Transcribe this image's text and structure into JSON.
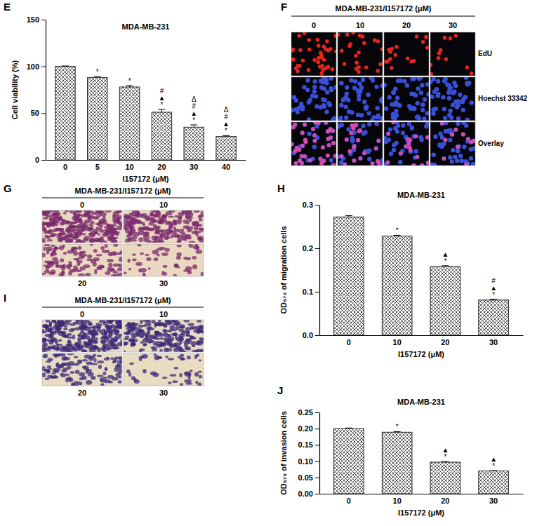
{
  "chart_data": [
    {
      "type": "bar",
      "panel_label": "E",
      "title": "MDA-MB-231",
      "x_label": "I157172 (μM)",
      "y_label": "Cell viability (%)",
      "categories": [
        "0",
        "5",
        "10",
        "20",
        "30",
        "40"
      ],
      "values": [
        100,
        88,
        78,
        51,
        35,
        25
      ],
      "errors": [
        0.5,
        1,
        1.5,
        3,
        2.5,
        1
      ],
      "annotations": [
        [],
        [
          "*"
        ],
        [
          "*"
        ],
        [
          "#",
          "▲",
          "*"
        ],
        [
          "Δ",
          "#",
          "▲",
          "*"
        ],
        [
          "Δ",
          "#",
          "▲",
          "*"
        ]
      ],
      "ylim": [
        0,
        150
      ],
      "yticks": [
        0,
        50,
        100,
        150
      ],
      "color": "#222222"
    },
    {
      "type": "image_grid",
      "panel_label": "F",
      "title": "MDA-MB-231/I157172  (μM)",
      "columns": [
        "0",
        "10",
        "20",
        "30"
      ],
      "rows": [
        "EdU",
        "Hoechst 33342",
        "Overlay"
      ]
    },
    {
      "type": "image_grid",
      "panel_label": "G",
      "title": "MDA-MB-231/I157172  (μM)",
      "labels": [
        "0",
        "10",
        "20",
        "30"
      ]
    },
    {
      "type": "bar",
      "panel_label": "H",
      "title": "MDA-MB-231",
      "x_label": "I157172  (μM)",
      "y_label": "OD₅₇₀ of  migration cells",
      "categories": [
        "0",
        "10",
        "20",
        "30"
      ],
      "values": [
        0.272,
        0.228,
        0.158,
        0.081
      ],
      "errors": [
        0.003,
        0.002,
        0.002,
        0.002
      ],
      "annotations": [
        [],
        [
          "*"
        ],
        [
          "▲",
          "*"
        ],
        [
          "#",
          "▲",
          "*"
        ]
      ],
      "ylim": [
        0,
        0.3
      ],
      "yticks": [
        {
          "value": 0,
          "label": "0.0"
        },
        0.1,
        0.2,
        0.3
      ],
      "color": "#222222"
    },
    {
      "type": "image_grid",
      "panel_label": "I",
      "title": "MDA-MB-231/I157172  (μM)",
      "labels": [
        "0",
        "10",
        "20",
        "30"
      ]
    },
    {
      "type": "bar",
      "panel_label": "J",
      "title": "MDA-MB-231",
      "x_label": "I157172  (μM)",
      "y_label": "OD₅₇₀ of  invasion cells",
      "categories": [
        "0",
        "10",
        "20",
        "30"
      ],
      "values": [
        0.2,
        0.189,
        0.097,
        0.07
      ],
      "errors": [
        0.002,
        0.002,
        0.002,
        0.001
      ],
      "annotations": [
        [],
        [
          "*"
        ],
        [
          "▲",
          "*"
        ],
        [
          "▲",
          "*"
        ]
      ],
      "ylim": [
        0,
        0.25
      ],
      "yticks": [
        {
          "value": 0,
          "label": "0.00"
        },
        0.05,
        {
          "value": 0.1,
          "label": "0.10"
        },
        0.15,
        {
          "value": 0.2,
          "label": "0.20"
        },
        0.25
      ],
      "color": "#222222"
    }
  ]
}
